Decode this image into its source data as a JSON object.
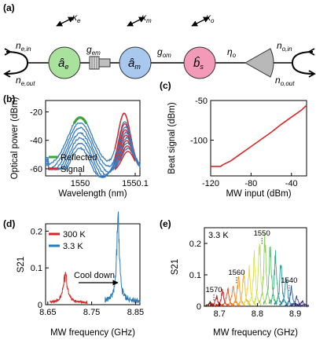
{
  "panels": {
    "a": {
      "label": "(a)"
    },
    "b": {
      "label": "(b)"
    },
    "c": {
      "label": "(c)"
    },
    "d": {
      "label": "(d)"
    },
    "e": {
      "label": "(e)"
    }
  },
  "schematic": {
    "input_e": "n",
    "input_e_sub": "e,in",
    "output_e": "n",
    "output_e_sub": "e,out",
    "input_o": "n",
    "input_o_sub": "o,in",
    "output_o": "n",
    "output_o_sub": "o,out",
    "mode_e": "â",
    "mode_e_sub": "e",
    "mode_m": "â",
    "mode_m_sub": "m",
    "mode_s": "b̂",
    "mode_s_sub": "s",
    "kappa_e": "κ",
    "kappa_e_sub": "e",
    "kappa_m": "κ",
    "kappa_m_sub": "m",
    "kappa_o": "κ",
    "kappa_o_sub": "o",
    "g_em": "g",
    "g_em_sub": "em",
    "g_om": "g",
    "g_om_sub": "om",
    "eta_o": "η",
    "eta_o_sub": "o",
    "colors": {
      "e": "#a9e29c",
      "m": "#a8c8ee",
      "s": "#f39ab8",
      "gray": "#b8b8b8"
    }
  },
  "chart_data": [
    {
      "id": "b",
      "type": "line",
      "xlabel": "Wavelength (nm)",
      "ylabel": "Optical power (dBm)",
      "xticks": [
        "1550",
        "1550.1"
      ],
      "yticks": [
        -20,
        -40,
        -60
      ],
      "ylim": [
        -65,
        -12
      ],
      "legend": [
        {
          "name": "Reflected",
          "color": "#3aa53a"
        },
        {
          "name": "Signal",
          "color": "#d62828"
        }
      ],
      "legend_position": "bottom-left",
      "reflected_offsets_db": [
        0,
        -3,
        -6,
        -9,
        -12,
        -15,
        -18
      ],
      "reflected_peak_dbm": -24,
      "signal_peaks_dbm": [
        -21,
        -25,
        -29,
        -33,
        -37,
        -41,
        -45
      ],
      "reflected_color": "#3a7cc0"
    },
    {
      "id": "c",
      "type": "line",
      "xlabel": "MW input (dBm)",
      "ylabel": "Beat signal (dBm)",
      "xticks": [
        -120,
        -80,
        -40
      ],
      "yticks": [
        -50,
        -100
      ],
      "xlim": [
        -120,
        -25
      ],
      "ylim": [
        -145,
        -50
      ],
      "x": [
        -120,
        -110,
        -108,
        -100,
        -90,
        -80,
        -70,
        -60,
        -50,
        -40,
        -30,
        -25
      ],
      "y": [
        -133,
        -133,
        -131,
        -126,
        -117,
        -108,
        -99,
        -90,
        -80,
        -71,
        -62,
        -56
      ],
      "color": "#d62828"
    },
    {
      "id": "d",
      "type": "line",
      "xlabel": "MW frequency (GHz)",
      "ylabel": "S21",
      "xticks": [
        "8.65",
        "8.75",
        "8.85"
      ],
      "yticks": [
        "0",
        "0.1",
        "0.2"
      ],
      "xlim": [
        8.645,
        8.86
      ],
      "ylim": [
        0,
        0.22
      ],
      "legend": [
        {
          "name": "300 K",
          "color": "#d62828"
        },
        {
          "name": "3.3 K",
          "color": "#2a7ab8"
        }
      ],
      "legend_position": "top-left",
      "annotation": "Cool down",
      "series": [
        {
          "name": "300 K",
          "center_ghz": 8.69,
          "peak": 0.07,
          "color": "#d62828"
        },
        {
          "name": "3.3 K",
          "center_ghz": 8.81,
          "peak": 0.205,
          "color": "#2a7ab8"
        }
      ]
    },
    {
      "id": "e",
      "type": "line",
      "xlabel": "MW frequency (GHz)",
      "ylabel": "S21",
      "xticks": [
        "8.7",
        "8.8",
        "8.9"
      ],
      "yticks": [
        "0",
        "0.1",
        "0.2"
      ],
      "xlim": [
        8.66,
        8.93
      ],
      "ylim": [
        0,
        0.25
      ],
      "annotation": "3.3 K",
      "wavelength_labels": [
        {
          "text": "1570",
          "x_ghz": 8.685,
          "y": 0.045
        },
        {
          "text": "1560",
          "x_ghz": 8.745,
          "y": 0.1
        },
        {
          "text": "1550",
          "x_ghz": 8.812,
          "y": 0.225
        },
        {
          "text": "1540",
          "x_ghz": 8.884,
          "y": 0.075
        }
      ],
      "peaks": [
        {
          "x": 8.676,
          "h": 0.012,
          "c": "#5a2a0a"
        },
        {
          "x": 8.692,
          "h": 0.032,
          "c": "#b01818"
        },
        {
          "x": 8.708,
          "h": 0.045,
          "c": "#d62828"
        },
        {
          "x": 8.722,
          "h": 0.055,
          "c": "#e84a1a"
        },
        {
          "x": 8.736,
          "h": 0.07,
          "c": "#ef7020"
        },
        {
          "x": 8.75,
          "h": 0.085,
          "c": "#f59424"
        },
        {
          "x": 8.764,
          "h": 0.1,
          "c": "#f8b52a"
        },
        {
          "x": 8.778,
          "h": 0.12,
          "c": "#f5d030"
        },
        {
          "x": 8.792,
          "h": 0.15,
          "c": "#e0e040"
        },
        {
          "x": 8.806,
          "h": 0.185,
          "c": "#c0e050"
        },
        {
          "x": 8.82,
          "h": 0.205,
          "c": "#8fd060"
        },
        {
          "x": 8.834,
          "h": 0.185,
          "c": "#5cc070"
        },
        {
          "x": 8.848,
          "h": 0.16,
          "c": "#2fae88"
        },
        {
          "x": 8.862,
          "h": 0.125,
          "c": "#209a9a"
        },
        {
          "x": 8.876,
          "h": 0.09,
          "c": "#2a80a8"
        },
        {
          "x": 8.89,
          "h": 0.055,
          "c": "#2a5e9a"
        },
        {
          "x": 8.904,
          "h": 0.03,
          "c": "#3a4488"
        },
        {
          "x": 8.918,
          "h": 0.015,
          "c": "#442d70"
        }
      ]
    }
  ]
}
